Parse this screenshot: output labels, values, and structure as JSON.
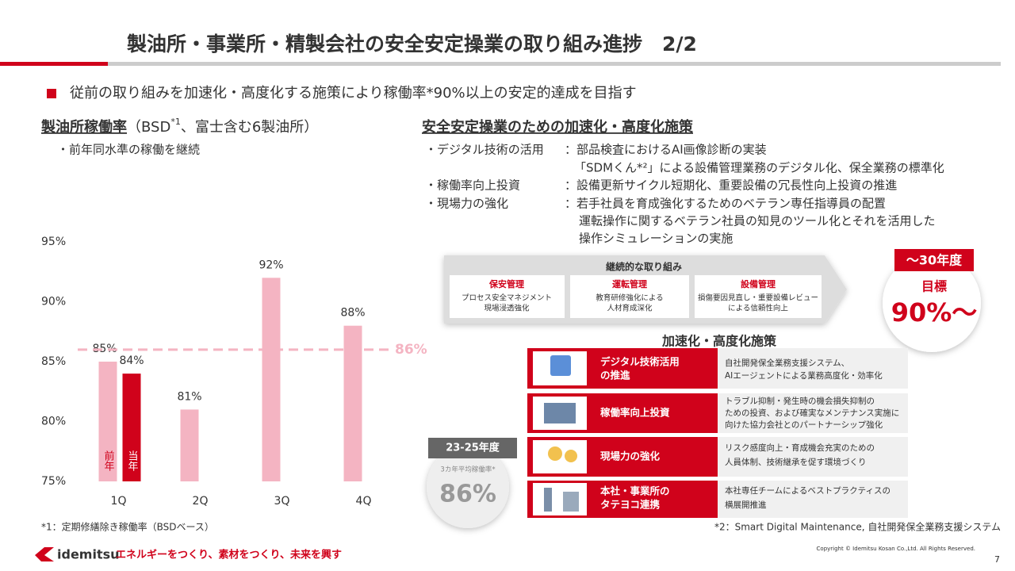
{
  "header": {
    "title": "製油所・事業所・精製会社の安全安定操業の取り組み進捗　2/2",
    "lead": "従前の取り組みを加速化・高度化する施策により稼働率*90%以上の安定的達成を目指す"
  },
  "left": {
    "heading": "製油所稼働率",
    "sub_before": "（BSD",
    "sub_sup": "*1",
    "sub_after": "、富士含む6製油所）",
    "bullet": "・前年同水準の稼働を継続"
  },
  "right": {
    "heading": "安全安定操業のための加速化・高度化施策",
    "items": [
      {
        "label": "・デジタル技術の活用",
        "lines": [
          "：部品検査におけるAI画像診断の実装",
          "「SDMくん*²」による設備管理業務のデジタル化、保全業務の標準化"
        ]
      },
      {
        "label": "・稼働率向上投資",
        "lines": [
          "：設備更新サイクル短期化、重要設備の冗長性向上投資の推進"
        ]
      },
      {
        "label": "・現場力の強化",
        "lines": [
          "：若手社員を育成強化するためのベテラン専任指導員の配置",
          "運転操作に関するベテラン社員の知見のツール化とそれを活用した",
          "操作シミュレーションの実施"
        ]
      }
    ]
  },
  "continuous": {
    "title": "継続的な取り組み",
    "boxes": [
      {
        "title": "保安管理",
        "text": [
          "プロセス安全マネジメント",
          "現場浸透強化"
        ]
      },
      {
        "title": "運転管理",
        "text": [
          "教育研修強化による",
          "人材育成深化"
        ]
      },
      {
        "title": "設備管理",
        "text": [
          "損傷要因見直し・重要設備レビュー",
          "による信頼性向上"
        ]
      }
    ]
  },
  "target": {
    "period": "～30年度",
    "label": "目標",
    "value": "90%～"
  },
  "acceleration": {
    "title": "加速化・高度化施策",
    "rows": [
      {
        "title": [
          "デジタル技術活用",
          "の推進"
        ],
        "text": [
          "自社開発保全業務支援システム、",
          "AIエージェントによる業務高度化・効率化"
        ]
      },
      {
        "title": [
          "稼働率向上投資"
        ],
        "text": [
          "トラブル抑制・発生時の機会損失抑制の",
          "ための投資、および確実なメンテナンス実施に",
          "向けた協力会社とのパートナーシップ強化"
        ]
      },
      {
        "title": [
          "現場力の強化"
        ],
        "text": [
          "リスク感度向上・育成機会充実のための",
          "人員体制、技術継承を促す環境づくり"
        ]
      },
      {
        "title": [
          "本社・事業所の",
          "タテヨコ連携"
        ],
        "text": [
          "本社専任チームによるベストプラクティスの",
          "横展開推進"
        ]
      }
    ]
  },
  "past": {
    "period": "23-25年度",
    "label": "3カ年平均稼働率*",
    "value": "86%"
  },
  "chart_data": {
    "type": "bar",
    "categories": [
      "1Q",
      "2Q",
      "3Q",
      "4Q"
    ],
    "series": [
      {
        "name": "前年",
        "color": "#f4b4c2",
        "values": [
          85,
          81,
          92,
          88
        ],
        "value_labels": [
          "85%",
          "81%",
          "92%",
          "88%"
        ]
      },
      {
        "name": "当年",
        "color": "#d0021b",
        "values": [
          84,
          null,
          null,
          null
        ],
        "value_labels": [
          "84%",
          null,
          null,
          null
        ]
      }
    ],
    "ylim": [
      75,
      95
    ],
    "yticks": [
      {
        "value": 75,
        "label": "75%"
      },
      {
        "value": 80,
        "label": "80%"
      },
      {
        "value": 85,
        "label": "85%"
      },
      {
        "value": 90,
        "label": "90%"
      },
      {
        "value": 95,
        "label": "95%"
      }
    ],
    "reference": {
      "value": 86,
      "label": "86%",
      "color": "#f4b4c2"
    }
  },
  "footnotes": [
    "*1：定期修繕除き稼働率（BSDベース）",
    "*2：Smart Digital Maintenance, 自社開発保全業務支援システム"
  ],
  "footer": {
    "brand": "idemitsu",
    "slogan": "エネルギーをつくり、素材をつくり、未来を興す",
    "copyright": "Copyright © Idemitsu Kosan Co.,Ltd.  All Rights Reserved.",
    "page": "7"
  }
}
